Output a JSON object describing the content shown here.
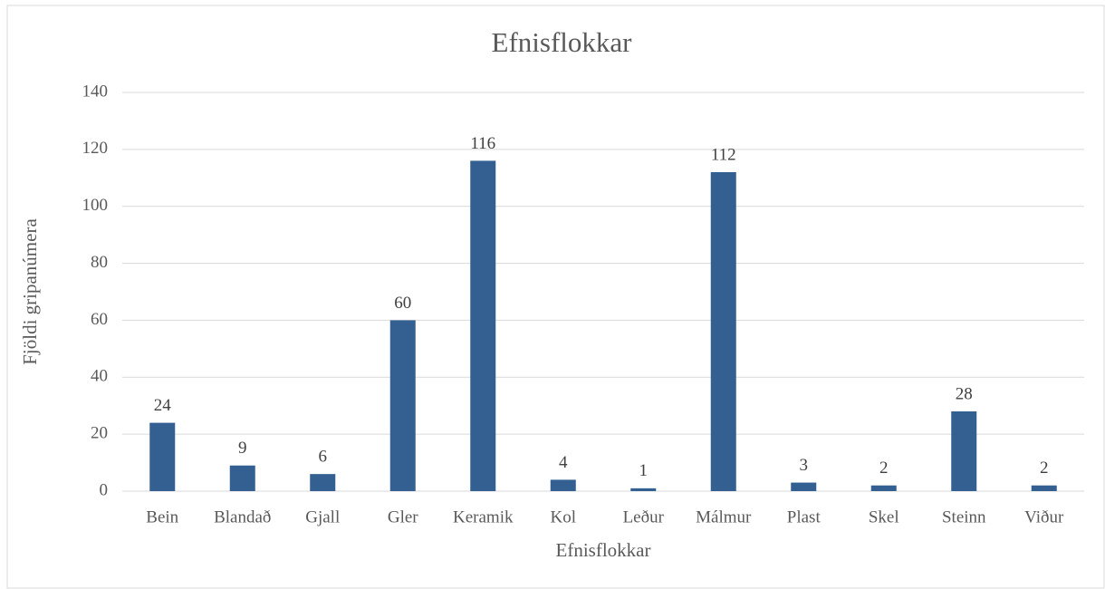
{
  "chart_data": {
    "type": "bar",
    "title": "Efnisflokkar",
    "x_label": "Efnisflokkar",
    "y_label": "Fjöldi gripanúmera",
    "categories": [
      "Bein",
      "Blandað",
      "Gjall",
      "Gler",
      "Keramik",
      "Kol",
      "Leður",
      "Málmur",
      "Plast",
      "Skel",
      "Steinn",
      "Viður"
    ],
    "values": [
      24,
      9,
      6,
      60,
      116,
      4,
      1,
      112,
      3,
      2,
      28,
      2
    ],
    "color": "#335f91",
    "ylim": [
      0,
      140
    ],
    "yticks": [
      0,
      20,
      40,
      60,
      80,
      100,
      120,
      140
    ],
    "grid": true
  }
}
